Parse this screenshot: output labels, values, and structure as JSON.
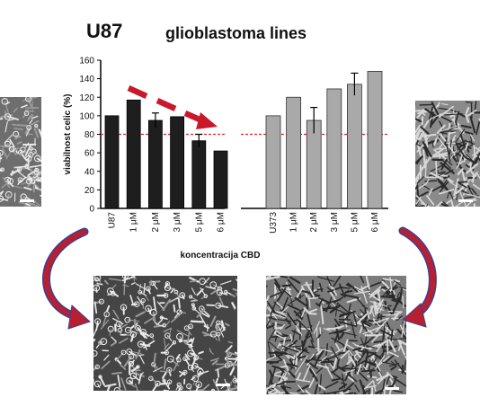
{
  "title": "U87",
  "subtitle": "glioblastoma lines",
  "colors": {
    "left_bars": "#1e1e1e",
    "right_bars": "#a9a9a9",
    "threshold_line": "#e0202a",
    "trend_arrow": "#c8192a",
    "curve_arrow_fill": "#b82030",
    "curve_arrow_edge": "#3a3f9a"
  },
  "icons": {
    "trend": "dashed-red-arrow",
    "left_curve": "curved-arrow-down-right",
    "right_curve": "curved-arrow-down-left"
  },
  "micrographs": [
    {
      "name": "u87-control-micrograph"
    },
    {
      "name": "u373-control-micrograph"
    },
    {
      "name": "u87-treated-micrograph"
    },
    {
      "name": "u373-treated-micrograph"
    }
  ],
  "chart_data": {
    "type": "bar",
    "title": "",
    "ylabel": "viabilnost celic (%)",
    "xlabel": "koncentracija CBD",
    "ylim": [
      0,
      160
    ],
    "yticks": [
      0,
      20,
      40,
      60,
      80,
      100,
      120,
      140,
      160
    ],
    "threshold": 80,
    "grid": false,
    "groups": [
      {
        "categories": [
          "U87",
          "1 μM",
          "2 μM",
          "3 μM",
          "5 μM",
          "6 μM"
        ],
        "values": [
          100,
          117,
          95,
          99,
          73,
          62
        ],
        "errors": [
          0,
          0,
          8,
          0,
          7,
          0
        ]
      },
      {
        "categories": [
          "U373",
          "1 μM",
          "2 μM",
          "3 μM",
          "5 μM",
          "6 μM"
        ],
        "values": [
          100,
          120,
          95,
          129,
          134,
          148
        ],
        "errors": [
          0,
          0,
          14,
          0,
          12,
          0
        ]
      }
    ]
  }
}
